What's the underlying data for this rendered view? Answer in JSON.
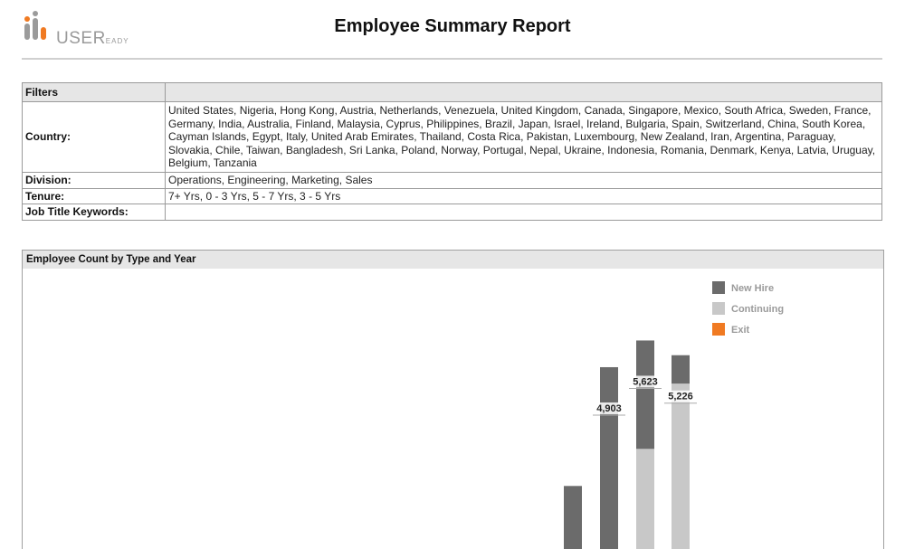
{
  "header": {
    "logo_text": "USER",
    "logo_sub": "EADY",
    "title": "Employee Summary Report"
  },
  "filters": {
    "heading": "Filters",
    "rows": [
      {
        "label": "Country:",
        "value": "United States, Nigeria, Hong Kong, Austria, Netherlands, Venezuela, United Kingdom, Canada, Singapore, Mexico, South Africa, Sweden, France, Germany, India, Australia, Finland, Malaysia, Cyprus, Philippines, Brazil, Japan, Israel, Ireland, Bulgaria, Spain, Switzerland, China, South Korea, Cayman Islands, Egypt, Italy, United Arab Emirates, Thailand, Costa Rica, Pakistan, Luxembourg, New Zealand, Iran, Argentina, Paraguay, Slovakia, Chile, Taiwan, Bangladesh, Sri Lanka, Poland, Norway, Portugal, Nepal, Ukraine, Indonesia, Romania, Denmark, Kenya, Latvia, Uruguay, Belgium, Tanzania"
      },
      {
        "label": "Division:",
        "value": "Operations, Engineering, Marketing, Sales"
      },
      {
        "label": "Tenure:",
        "value": "7+ Yrs, 0 - 3 Yrs, 5 - 7 Yrs, 3 - 5 Yrs"
      },
      {
        "label": "Job Title Keywords:",
        "value": ""
      }
    ]
  },
  "chart_panel": {
    "heading": "Employee Count by Type and Year"
  },
  "chart_data": {
    "type": "bar",
    "stacked": true,
    "categories": [
      "",
      "",
      "",
      ""
    ],
    "series": [
      {
        "name": "New Hire",
        "color": "#6b6b6b"
      },
      {
        "name": "Continuing",
        "color": "#c8c8c8"
      },
      {
        "name": "Exit",
        "color": "#f07a22"
      }
    ],
    "bars": [
      {
        "continuing": 0,
        "new_hire": 1700,
        "total_label": ""
      },
      {
        "continuing": 0,
        "new_hire": 4903,
        "total_label": "4,903"
      },
      {
        "continuing": 2700,
        "new_hire": 2923,
        "total_label": "5,623"
      },
      {
        "continuing": 4460,
        "new_hire": 766,
        "total_label": "5,226"
      }
    ],
    "legend_position": "top-right",
    "ylim": [
      0,
      6800
    ]
  }
}
